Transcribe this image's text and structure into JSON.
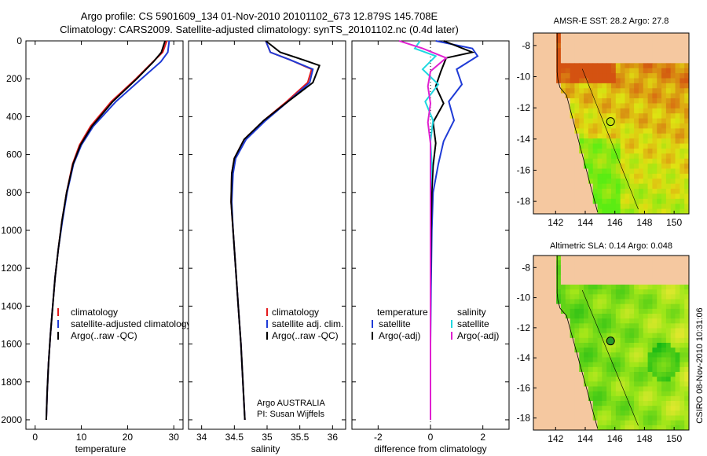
{
  "header": {
    "line1": "Argo profile: CS 5901609_134 01-Nov-2010 20101102_673 12.879S 145.708E",
    "line2": "Climatology: CARS2009. Satellite-adjusted climatology: synTS_20101102.nc (0.4d later)"
  },
  "colors": {
    "climatology": "#e41a1c",
    "satellite": "#1f3bd6",
    "argo": "#000000",
    "argo_adj": "#e020d0",
    "salinity_satellite": "#20d8e0",
    "land": "#f5c8a0"
  },
  "chart_data": [
    {
      "id": "temperature",
      "type": "line",
      "xlabel": "temperature",
      "ylabel": "",
      "xlim": [
        -2,
        32
      ],
      "ylim": [
        2050,
        0
      ],
      "xticks": [
        0,
        10,
        20,
        30
      ],
      "yticks": [
        0,
        200,
        400,
        600,
        800,
        1000,
        1200,
        1400,
        1600,
        1800,
        2000
      ],
      "legend": [
        "climatology",
        "satellite-adjusted climatology",
        "Argo(..raw -QC)"
      ],
      "series": [
        {
          "name": "climatology",
          "color": "red",
          "x": [
            28.5,
            27.6,
            25.5,
            21.8,
            16.5,
            12.0,
            9.6,
            8.1,
            6.8,
            5.8,
            5.0,
            4.3,
            3.8,
            3.3,
            2.9,
            2.6,
            2.4
          ],
          "y": [
            0,
            60,
            110,
            200,
            320,
            450,
            550,
            650,
            800,
            950,
            1100,
            1250,
            1400,
            1550,
            1700,
            1850,
            2000
          ]
        },
        {
          "name": "satellite-adjusted climatology",
          "color": "blue",
          "x": [
            29.0,
            28.7,
            27.2,
            23.0,
            17.5,
            12.6,
            10.0,
            8.3,
            6.9,
            5.9,
            5.0,
            4.3,
            3.8,
            3.3,
            2.9,
            2.6,
            2.4
          ],
          "y": [
            0,
            60,
            110,
            200,
            320,
            450,
            550,
            650,
            800,
            950,
            1100,
            1250,
            1400,
            1550,
            1700,
            1850,
            2000
          ]
        },
        {
          "name": "Argo(..raw -QC)",
          "color": "black",
          "x": [
            28.1,
            27.3,
            25.6,
            22.0,
            16.8,
            12.3,
            9.8,
            8.2,
            6.8,
            5.8,
            5.0,
            4.3,
            3.8,
            3.3,
            2.9,
            2.6,
            2.4
          ],
          "y": [
            0,
            60,
            110,
            200,
            320,
            450,
            550,
            650,
            800,
            950,
            1100,
            1250,
            1400,
            1550,
            1700,
            1850,
            2000
          ]
        }
      ]
    },
    {
      "id": "salinity",
      "type": "line",
      "xlabel": "salinity",
      "xlim": [
        33.8,
        36.2
      ],
      "ylim": [
        2050,
        0
      ],
      "xticks": [
        34,
        34.5,
        35,
        35.5,
        36
      ],
      "legend": [
        "climatology",
        "satellite adj. clim.",
        "Argo(..raw -QC)"
      ],
      "annotation": [
        "Argo AUSTRALIA",
        "PI: Susan Wijffels"
      ],
      "series": [
        {
          "name": "climatology",
          "color": "red",
          "x": [
            34.98,
            35.05,
            35.35,
            35.68,
            35.62,
            35.3,
            34.95,
            34.65,
            34.5,
            34.46,
            34.45,
            34.48,
            34.52,
            34.56,
            34.6,
            34.63,
            34.66
          ],
          "y": [
            0,
            60,
            100,
            150,
            220,
            320,
            420,
            520,
            620,
            700,
            850,
            1000,
            1200,
            1400,
            1600,
            1800,
            2000
          ]
        },
        {
          "name": "satellite adj. clim.",
          "color": "blue",
          "x": [
            34.98,
            35.05,
            35.35,
            35.7,
            35.65,
            35.32,
            34.98,
            34.68,
            34.52,
            34.48,
            34.46,
            34.48,
            34.52,
            34.56,
            34.6,
            34.63,
            34.66
          ],
          "y": [
            0,
            60,
            100,
            150,
            220,
            320,
            420,
            520,
            620,
            700,
            850,
            1000,
            1200,
            1400,
            1600,
            1800,
            2000
          ]
        },
        {
          "name": "Argo(..raw -QC)",
          "color": "black",
          "x": [
            34.98,
            35.2,
            35.55,
            35.8,
            35.7,
            35.32,
            34.95,
            34.65,
            34.5,
            34.46,
            34.45,
            34.48,
            34.52,
            34.56,
            34.6,
            34.63,
            34.66
          ],
          "y": [
            0,
            60,
            100,
            130,
            220,
            320,
            420,
            520,
            620,
            700,
            850,
            1000,
            1200,
            1400,
            1600,
            1800,
            2000
          ]
        }
      ]
    },
    {
      "id": "difference",
      "type": "line",
      "xlabel": "difference from climatology",
      "xlim": [
        -3,
        3
      ],
      "ylim": [
        2050,
        0
      ],
      "xticks": [
        -2,
        0,
        2
      ],
      "legend_left_title": "temperature",
      "legend_right_title": "salinity",
      "legend": [
        "satellite",
        "Argo(-adj)",
        "satellite",
        "Argo(-adj)"
      ],
      "series": [
        {
          "name": "temperature satellite",
          "color": "blue",
          "x": [
            0.2,
            1.6,
            1.8,
            1.0,
            1.2,
            0.7,
            0.9,
            0.5,
            0.3,
            0.1,
            0.05,
            0.02,
            0.0,
            0.0
          ],
          "y": [
            0,
            40,
            80,
            150,
            230,
            320,
            420,
            530,
            650,
            800,
            1000,
            1300,
            1600,
            2000
          ]
        },
        {
          "name": "temperature Argo(-adj)",
          "color": "black",
          "x": [
            0.5,
            1.6,
            0.6,
            0.4,
            0.2,
            0.5,
            0.1,
            0.2,
            0.1,
            0.05,
            0.02,
            0.0,
            0.0,
            0.0
          ],
          "y": [
            0,
            60,
            90,
            160,
            240,
            330,
            430,
            540,
            660,
            800,
            1000,
            1300,
            1600,
            2000
          ]
        },
        {
          "name": "salinity satellite",
          "color": "cyan",
          "x": [
            -0.4,
            -0.6,
            0.2,
            -0.3,
            0.3,
            -0.2,
            0.1,
            0.0,
            0.05,
            0.0,
            0.0,
            0.0,
            0.0,
            0.0
          ],
          "y": [
            0,
            40,
            80,
            150,
            230,
            320,
            420,
            530,
            650,
            800,
            1000,
            1300,
            1600,
            2000
          ]
        },
        {
          "name": "salinity Argo(-adj)",
          "color": "magenta",
          "x": [
            -1.2,
            -0.3,
            0.6,
            0.0,
            -0.1,
            0.0,
            -0.1,
            0.0,
            0.0,
            0.0,
            0.0,
            0.0,
            0.0,
            0.0
          ],
          "y": [
            0,
            40,
            90,
            160,
            240,
            330,
            430,
            540,
            660,
            800,
            1000,
            1300,
            1600,
            2000
          ]
        }
      ]
    },
    {
      "id": "sst-map",
      "type": "heatmap",
      "title": "AMSR-E SST: 28.2 Argo: 27.8",
      "xlim": [
        140.5,
        151
      ],
      "ylim": [
        -18.8,
        -7.2
      ],
      "xticks": [
        142,
        144,
        146,
        148,
        150
      ],
      "yticks": [
        -8,
        -10,
        -12,
        -14,
        -16,
        -18
      ],
      "marker": {
        "lon": 145.708,
        "lat": -12.879
      }
    },
    {
      "id": "sla-map",
      "type": "heatmap",
      "title": "Altimetric SLA: 0.14 Argo: 0.048",
      "xlim": [
        140.5,
        151
      ],
      "ylim": [
        -18.8,
        -7.2
      ],
      "xticks": [
        142,
        144,
        146,
        148,
        150
      ],
      "yticks": [
        -8,
        -10,
        -12,
        -14,
        -16,
        -18
      ],
      "marker": {
        "lon": 145.708,
        "lat": -12.879
      }
    }
  ],
  "footer": {
    "stamp": "CSIRO 08-Nov-2010 10:31:06"
  }
}
